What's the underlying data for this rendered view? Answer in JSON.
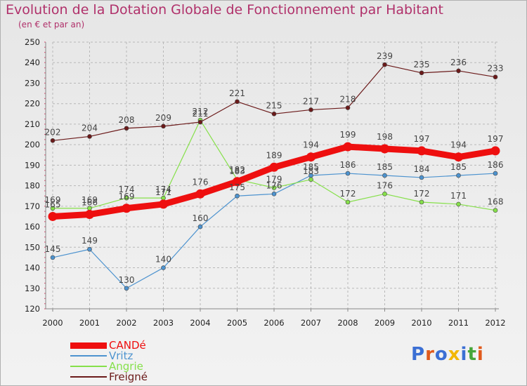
{
  "header": {
    "title": "Evolution de la Dotation Globale de Fonctionnement par Habitant",
    "subtitle": "(en € et par an)"
  },
  "colors": {
    "title": "#b0306a",
    "grid": "#b8b8b8",
    "axis": "#888888",
    "tick_label": "#222222",
    "value_label": "#444444",
    "ytick_marker": "#e06080"
  },
  "logo": {
    "text": "Proxiti",
    "letter_colors": [
      "#3b6fd4",
      "#e05a1c",
      "#3b6fd4",
      "#f2b705",
      "#3b6fd4",
      "#45a63a",
      "#e05a1c"
    ]
  },
  "chart_data": {
    "type": "line",
    "title": "Evolution de la Dotation Globale de Fonctionnement par Habitant",
    "subtitle": "(en € et par an)",
    "x": [
      "2000",
      "2001",
      "2002",
      "2003",
      "2004",
      "2005",
      "2006",
      "2007",
      "2008",
      "2009",
      "2010",
      "2011",
      "2012"
    ],
    "ylim": [
      120,
      250
    ],
    "yticks": [
      120,
      130,
      140,
      150,
      160,
      170,
      180,
      190,
      200,
      210,
      220,
      230,
      240,
      250
    ],
    "grid": true,
    "legend_position": "bottom-left",
    "series": [
      {
        "name": "CANDé",
        "color": "#ee0f0f",
        "width": 9,
        "marker_r": 6.5,
        "values": [
          165,
          166,
          169,
          171,
          176,
          182,
          189,
          194,
          199,
          198,
          197,
          194,
          197
        ]
      },
      {
        "name": "Vritz",
        "color": "#4d93cf",
        "width": 1.2,
        "marker_r": 3,
        "values": [
          145,
          149,
          130,
          140,
          160,
          175,
          176,
          185,
          186,
          185,
          184,
          185,
          186
        ]
      },
      {
        "name": "Angrie",
        "color": "#86e04a",
        "width": 1.2,
        "marker_r": 3,
        "values": [
          169,
          169,
          174,
          174,
          212,
          183,
          179,
          183,
          172,
          176,
          172,
          171,
          168
        ]
      },
      {
        "name": "Freigné",
        "color": "#6b1a1a",
        "width": 1.2,
        "marker_r": 3,
        "values": [
          202,
          204,
          208,
          209,
          211,
          221,
          215,
          217,
          218,
          239,
          235,
          236,
          233
        ]
      }
    ]
  }
}
